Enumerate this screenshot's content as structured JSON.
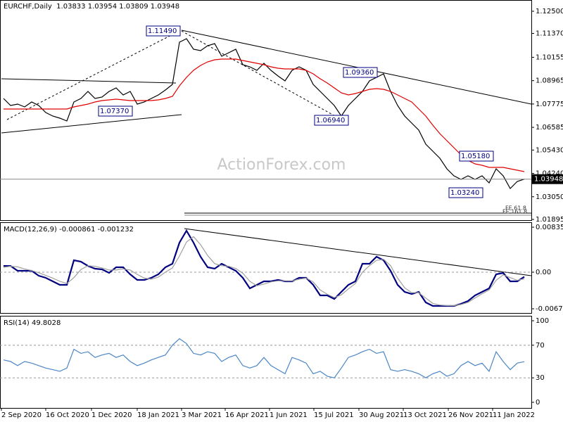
{
  "chart_data": [
    {
      "type": "line",
      "title": "EURCHF,Daily  1.03833 1.03954 1.03809 1.03948",
      "watermark": "ActionForex.com",
      "x": [
        0,
        1,
        2,
        3,
        4,
        5,
        6,
        7,
        8,
        9,
        10,
        11,
        12,
        13,
        14,
        15,
        16,
        17,
        18,
        19,
        20,
        21,
        22,
        23,
        24,
        25,
        26,
        27,
        28,
        29,
        30,
        31,
        32,
        33,
        34,
        35,
        36,
        37,
        38,
        39,
        40,
        41,
        42,
        43,
        44,
        45,
        46,
        47,
        48,
        49,
        50,
        51,
        52,
        53,
        54,
        55,
        56,
        57,
        58,
        59,
        60,
        61,
        62,
        63,
        64,
        65,
        66,
        67,
        68,
        69,
        70,
        71,
        72,
        73,
        74
      ],
      "xlim": [
        -0.5,
        75
      ],
      "ylim": [
        1.01859,
        1.13037
      ],
      "yticks": [
        {
          "value": 1.125,
          "label": "1.12500"
        },
        {
          "value": 1.1137,
          "label": "1.11370"
        },
        {
          "value": 1.10155,
          "label": "1.10155"
        },
        {
          "value": 1.08965,
          "label": "1.08965"
        },
        {
          "value": 1.07775,
          "label": "1.07775"
        },
        {
          "value": 1.06585,
          "label": "1.06585"
        },
        {
          "value": 1.0543,
          "label": "1.05430"
        },
        {
          "value": 1.0424,
          "label": "1.04240"
        },
        {
          "value": 1.0305,
          "label": "1.03050"
        },
        {
          "value": 1.01895,
          "label": "1.01895"
        }
      ],
      "current_price": {
        "value": 1.03948,
        "label": "1.03948"
      },
      "annotations": [
        "1.11490",
        "1.07370",
        "1.06940",
        "1.09360",
        "1.05180",
        "1.03240",
        "FE 61.8",
        "FE 161.8"
      ],
      "series": [
        {
          "color": "#000000",
          "values": [
            1.08057,
            1.07699,
            1.0777,
            1.07627,
            1.07878,
            1.07699,
            1.0734,
            1.07161,
            1.07054,
            1.06911,
            1.07878,
            1.08057,
            1.08415,
            1.08057,
            1.08129,
            1.08415,
            1.08595,
            1.08236,
            1.08415,
            1.0777,
            1.07878,
            1.08057,
            1.08236,
            1.08487,
            1.08774,
            1.10923,
            1.11103,
            1.10565,
            1.10494,
            1.10744,
            1.10852,
            1.10207,
            1.10386,
            1.10565,
            1.09777,
            1.09669,
            1.0949,
            1.09849,
            1.0949,
            1.09204,
            1.08953,
            1.0949,
            1.09669,
            1.0949,
            1.08774,
            1.08415,
            1.08057,
            1.07699,
            1.07161,
            1.07699,
            1.08057,
            1.08415,
            1.08953,
            1.09132,
            1.09311,
            1.08415,
            1.07699,
            1.07161,
            1.06803,
            1.06445,
            1.05728,
            1.0537,
            1.05012,
            1.04474,
            1.04116,
            1.03937,
            1.04116,
            1.03937,
            1.04116,
            1.03757,
            1.04474,
            1.04116,
            1.03471,
            1.03829,
            1.03948
          ]
        },
        {
          "color": "#e00000",
          "values": [
            1.0752,
            1.0752,
            1.0752,
            1.0752,
            1.0752,
            1.0752,
            1.0752,
            1.0752,
            1.0752,
            1.0752,
            1.07627,
            1.07699,
            1.0777,
            1.07878,
            1.0795,
            1.07985,
            1.08021,
            1.07985,
            1.0795,
            1.0795,
            1.0795,
            1.0795,
            1.07985,
            1.08057,
            1.08165,
            1.08702,
            1.09132,
            1.0949,
            1.09741,
            1.0992,
            1.10028,
            1.10064,
            1.10064,
            1.10064,
            1.09992,
            1.0992,
            1.09849,
            1.09777,
            1.09669,
            1.09598,
            1.09562,
            1.09562,
            1.09562,
            1.0949,
            1.09311,
            1.0906,
            1.08845,
            1.08595,
            1.08344,
            1.08236,
            1.08308,
            1.08415,
            1.08523,
            1.08559,
            1.08523,
            1.08415,
            1.08236,
            1.08057,
            1.07878,
            1.0752,
            1.07161,
            1.06696,
            1.06266,
            1.05907,
            1.05549,
            1.05191,
            1.04904,
            1.04725,
            1.04653,
            1.04546,
            1.04546,
            1.04546,
            1.04474,
            1.04403,
            1.04331
          ]
        }
      ]
    },
    {
      "type": "line",
      "title": "MACD(12,26,9) -0.000861 -0.001232",
      "x": [
        0,
        1,
        2,
        3,
        4,
        5,
        6,
        7,
        8,
        9,
        10,
        11,
        12,
        13,
        14,
        15,
        16,
        17,
        18,
        19,
        20,
        21,
        22,
        23,
        24,
        25,
        26,
        27,
        28,
        29,
        30,
        31,
        32,
        33,
        34,
        35,
        36,
        37,
        38,
        39,
        40,
        41,
        42,
        43,
        44,
        45,
        46,
        47,
        48,
        49,
        50,
        51,
        52,
        53,
        54,
        55,
        56,
        57,
        58,
        59,
        60,
        61,
        62,
        63,
        64,
        65,
        66,
        67,
        68,
        69,
        70,
        71,
        72,
        73,
        74
      ],
      "xlim": [
        -0.5,
        75
      ],
      "ylim": [
        -0.00757,
        0.00914
      ],
      "yticks": [
        0.008353,
        {
          "value": 0,
          "label": "0.00"
        },
        -0.006788
      ],
      "series": [
        {
          "color": "#000080",
          "values": [
            0.00117,
            0.00117,
            0.00026,
            0.00026,
            0.00026,
            -0.00065,
            -0.00104,
            -0.0017,
            -0.00235,
            -0.00235,
            0.00222,
            0.00196,
            0.00117,
            0.00065,
            0.00052,
            -0.00013,
            0.00091,
            0.00091,
            -0.00039,
            -0.00144,
            -0.00144,
            -0.00104,
            -0.00039,
            0.00091,
            0.00157,
            0.00548,
            0.0077,
            0.00548,
            0.00287,
            0.00091,
            0.00065,
            0.00157,
            0.00091,
            0.00026,
            -0.00104,
            -0.003,
            -0.00235,
            -0.0017,
            -0.0017,
            -0.00144,
            -0.0017,
            -0.0017,
            -0.00104,
            -0.00104,
            -0.00235,
            -0.00431,
            -0.00431,
            -0.00496,
            -0.00365,
            -0.00235,
            -0.0017,
            0.00157,
            0.00157,
            0.00287,
            0.00222,
            0.00026,
            -0.00235,
            -0.00365,
            -0.00405,
            -0.00365,
            -0.00561,
            -0.00627,
            -0.00627,
            -0.00627,
            -0.00627,
            -0.00587,
            -0.00535,
            -0.00431,
            -0.00365,
            -0.003,
            -0.00039,
            -0.00013,
            -0.0017,
            -0.0017,
            -0.00086
          ]
        },
        {
          "color": "#a0a0a0",
          "values": [
            0.0009,
            0.0011,
            0.001,
            0.0006,
            0.0003,
            -0.0001,
            -0.0006,
            -0.0011,
            -0.0017,
            -0.0021,
            -0.001,
            0.0005,
            0.0012,
            0.0011,
            0.0008,
            0.0004,
            0.0004,
            0.0006,
            0.0004,
            -0.0004,
            -0.0011,
            -0.0013,
            -0.0009,
            0.0,
            0.0008,
            0.003,
            0.0056,
            0.0066,
            0.0051,
            0.0031,
            0.0016,
            0.0012,
            0.0011,
            0.0007,
            -0.0002,
            -0.0017,
            -0.0025,
            -0.0022,
            -0.0018,
            -0.0016,
            -0.0016,
            -0.0016,
            -0.0013,
            -0.0011,
            -0.0018,
            -0.0033,
            -0.0041,
            -0.0047,
            -0.0042,
            -0.0031,
            -0.0021,
            0.0,
            0.0012,
            0.0022,
            0.0024,
            0.0012,
            -0.0011,
            -0.0029,
            -0.0038,
            -0.0038,
            -0.0048,
            -0.0058,
            -0.0061,
            -0.0062,
            -0.0062,
            -0.006,
            -0.0056,
            -0.0048,
            -0.004,
            -0.0033,
            -0.0015,
            -0.0005,
            -0.001,
            -0.0015,
            -0.00123
          ]
        }
      ]
    },
    {
      "type": "line",
      "title": "RSI(14) 49.8028",
      "x": [
        0,
        1,
        2,
        3,
        4,
        5,
        6,
        7,
        8,
        9,
        10,
        11,
        12,
        13,
        14,
        15,
        16,
        17,
        18,
        19,
        20,
        21,
        22,
        23,
        24,
        25,
        26,
        27,
        28,
        29,
        30,
        31,
        32,
        33,
        34,
        35,
        36,
        37,
        38,
        39,
        40,
        41,
        42,
        43,
        44,
        45,
        46,
        47,
        48,
        49,
        50,
        51,
        52,
        53,
        54,
        55,
        56,
        57,
        58,
        59,
        60,
        61,
        62,
        63,
        64,
        65,
        66,
        67,
        68,
        69,
        70,
        71,
        72,
        73,
        74
      ],
      "xlim": [
        -0.5,
        75
      ],
      "ylim": [
        -6.9,
        105.2
      ],
      "yticks": [
        100,
        70,
        30,
        0
      ],
      "xticks": [
        {
          "value": -0.3,
          "label": "2 Sep 2020"
        },
        {
          "value": 6,
          "label": "16 Oct 2020"
        },
        {
          "value": 12.5,
          "label": "1 Dec 2020"
        },
        {
          "value": 19,
          "label": "18 Jan 2021"
        },
        {
          "value": 25.3,
          "label": "3 Mar 2021"
        },
        {
          "value": 31.5,
          "label": "16 Apr 2021"
        },
        {
          "value": 37.8,
          "label": "1 Jun 2021"
        },
        {
          "value": 44.1,
          "label": "15 Jul 2021"
        },
        {
          "value": 50.5,
          "label": "30 Aug 2021"
        },
        {
          "value": 56.8,
          "label": "13 Oct 2021"
        },
        {
          "value": 63.2,
          "label": "26 Nov 2021"
        },
        {
          "value": 69.5,
          "label": "11 Jan 2022"
        }
      ],
      "series": [
        {
          "color": "#4a86c5",
          "values": [
            52,
            50,
            45,
            50,
            48,
            45,
            42,
            40,
            38,
            42,
            65,
            60,
            62,
            55,
            58,
            60,
            55,
            58,
            50,
            45,
            48,
            52,
            55,
            58,
            70,
            78,
            72,
            60,
            58,
            62,
            60,
            50,
            55,
            58,
            45,
            42,
            45,
            55,
            45,
            40,
            35,
            55,
            52,
            48,
            35,
            38,
            32,
            30,
            42,
            55,
            58,
            62,
            65,
            60,
            62,
            40,
            38,
            40,
            38,
            35,
            30,
            35,
            38,
            32,
            35,
            45,
            50,
            45,
            48,
            38,
            62,
            50,
            40,
            48,
            49.8028
          ]
        }
      ]
    }
  ]
}
